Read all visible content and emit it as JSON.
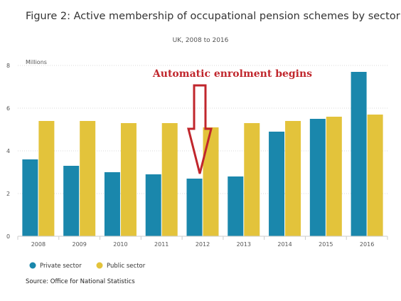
{
  "chart_data": {
    "type": "bar",
    "title": "Figure 2: Active membership of occupational pension schemes by sector",
    "subtitle": "UK, 2008 to 2016",
    "ylabel": "Millions",
    "ylim": [
      0,
      8
    ],
    "yticks": [
      0,
      2,
      4,
      6,
      8
    ],
    "grid": true,
    "categories": [
      "2008",
      "2009",
      "2010",
      "2011",
      "2012",
      "2013",
      "2014",
      "2015",
      "2016"
    ],
    "series": [
      {
        "name": "Private sector",
        "color": "#1a87ac",
        "values": [
          3.6,
          3.3,
          3.0,
          2.9,
          2.7,
          2.8,
          4.9,
          5.5,
          7.7
        ]
      },
      {
        "name": "Public sector",
        "color": "#e3c33b",
        "values": [
          5.4,
          5.4,
          5.3,
          5.3,
          5.1,
          5.3,
          5.4,
          5.6,
          5.7
        ]
      }
    ],
    "legend_position": "bottom-left",
    "annotation": {
      "text": "Automatic enrolment begins",
      "category": "2012",
      "color": "#c0262c"
    },
    "source": "Source: Office for National Statistics"
  }
}
